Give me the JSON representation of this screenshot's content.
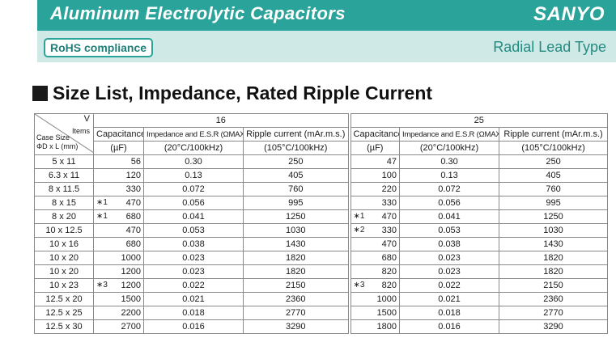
{
  "header": {
    "title": "Aluminum Electrolytic Capacitors",
    "brand": "SANYO",
    "rohs_label": "RoHS compliance",
    "lead_type": "Radial Lead Type"
  },
  "section_title": "Size List, Impedance, Rated Ripple Current",
  "table": {
    "corner": {
      "v": "V",
      "items": "Items",
      "case_size": "Case Size",
      "dims": "ΦD x L (mm)"
    },
    "voltages": [
      "16",
      "25"
    ],
    "col_headers": {
      "capacitance": "Capacitance",
      "impedance": "Impedance and E.S.R (ΩMAX.)",
      "ripple": "Ripple current (mAr.m.s.)"
    },
    "units": {
      "capacitance": "(µF)",
      "impedance": "(20°C/100kHz)",
      "ripple": "(105°C/100kHz)"
    },
    "rows": [
      {
        "case": "5 x 11",
        "v16": {
          "note": "",
          "cap": "56",
          "imp": "0.30",
          "rip": "250"
        },
        "v25": {
          "note": "",
          "cap": "47",
          "imp": "0.30",
          "rip": "250"
        }
      },
      {
        "case": "6.3 x 11",
        "v16": {
          "note": "",
          "cap": "120",
          "imp": "0.13",
          "rip": "405"
        },
        "v25": {
          "note": "",
          "cap": "100",
          "imp": "0.13",
          "rip": "405"
        }
      },
      {
        "case": "8 x 11.5",
        "v16": {
          "note": "",
          "cap": "330",
          "imp": "0.072",
          "rip": "760"
        },
        "v25": {
          "note": "",
          "cap": "220",
          "imp": "0.072",
          "rip": "760"
        }
      },
      {
        "case": "8 x 15",
        "v16": {
          "note": "∗1",
          "cap": "470",
          "imp": "0.056",
          "rip": "995"
        },
        "v25": {
          "note": "",
          "cap": "330",
          "imp": "0.056",
          "rip": "995"
        }
      },
      {
        "case": "8 x 20",
        "v16": {
          "note": "∗1",
          "cap": "680",
          "imp": "0.041",
          "rip": "1250"
        },
        "v25": {
          "note": "∗1",
          "cap": "470",
          "imp": "0.041",
          "rip": "1250"
        }
      },
      {
        "case": "10 x 12.5",
        "v16": {
          "note": "",
          "cap": "470",
          "imp": "0.053",
          "rip": "1030"
        },
        "v25": {
          "note": "∗2",
          "cap": "330",
          "imp": "0.053",
          "rip": "1030"
        }
      },
      {
        "case": "10 x 16",
        "v16": {
          "note": "",
          "cap": "680",
          "imp": "0.038",
          "rip": "1430"
        },
        "v25": {
          "note": "",
          "cap": "470",
          "imp": "0.038",
          "rip": "1430"
        }
      },
      {
        "case": "10 x 20",
        "v16": {
          "note": "",
          "cap": "1000",
          "imp": "0.023",
          "rip": "1820"
        },
        "v25": {
          "note": "",
          "cap": "680",
          "imp": "0.023",
          "rip": "1820"
        }
      },
      {
        "case": "10 x 20",
        "v16": {
          "note": "",
          "cap": "1200",
          "imp": "0.023",
          "rip": "1820"
        },
        "v25": {
          "note": "",
          "cap": "820",
          "imp": "0.023",
          "rip": "1820"
        }
      },
      {
        "case": "10 x 23",
        "v16": {
          "note": "∗3",
          "cap": "1200",
          "imp": "0.022",
          "rip": "2150"
        },
        "v25": {
          "note": "∗3",
          "cap": "820",
          "imp": "0.022",
          "rip": "2150"
        }
      },
      {
        "case": "12.5 x 20",
        "v16": {
          "note": "",
          "cap": "1500",
          "imp": "0.021",
          "rip": "2360"
        },
        "v25": {
          "note": "",
          "cap": "1000",
          "imp": "0.021",
          "rip": "2360"
        }
      },
      {
        "case": "12.5 x 25",
        "v16": {
          "note": "",
          "cap": "2200",
          "imp": "0.018",
          "rip": "2770"
        },
        "v25": {
          "note": "",
          "cap": "1500",
          "imp": "0.018",
          "rip": "2770"
        }
      },
      {
        "case": "12.5 x 30",
        "v16": {
          "note": "",
          "cap": "2700",
          "imp": "0.016",
          "rip": "3290"
        },
        "v25": {
          "note": "",
          "cap": "1800",
          "imp": "0.016",
          "rip": "3290"
        }
      }
    ]
  }
}
